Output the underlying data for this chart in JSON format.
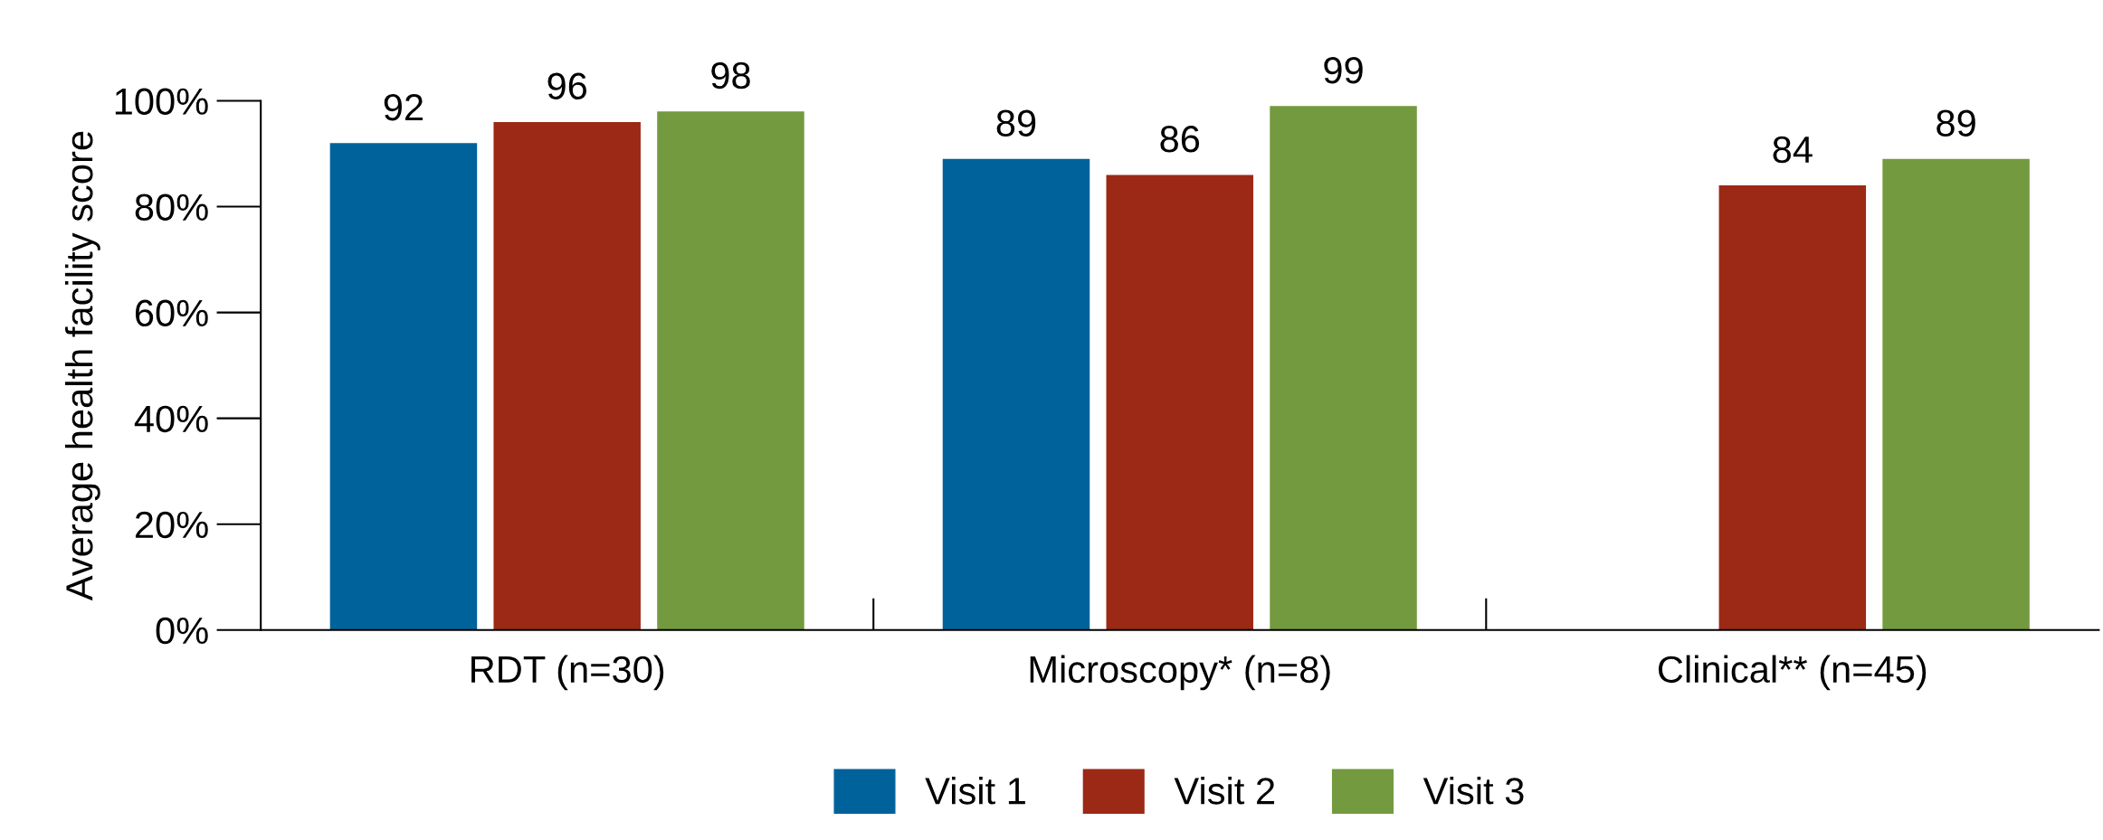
{
  "chart_data": {
    "type": "bar",
    "ylabel": "Average health facility score",
    "categories": [
      "RDT (n=30)",
      "Microscopy* (n=8)",
      "Clinical** (n=45)"
    ],
    "series": [
      {
        "name": "Visit 1",
        "color": "#00629b",
        "values": [
          92,
          89,
          null
        ]
      },
      {
        "name": "Visit 2",
        "color": "#9b2915",
        "values": [
          96,
          86,
          84
        ]
      },
      {
        "name": "Visit 3",
        "color": "#739a3f",
        "values": [
          98,
          99,
          89
        ]
      }
    ],
    "ylim": [
      0,
      100
    ],
    "yticks": [
      {
        "value": 0,
        "label": "0%"
      },
      {
        "value": 20,
        "label": "20%"
      },
      {
        "value": 40,
        "label": "40%"
      },
      {
        "value": 60,
        "label": "60%"
      },
      {
        "value": 80,
        "label": "80%"
      },
      {
        "value": 100,
        "label": "100%"
      }
    ],
    "data_labels": true,
    "grid": false,
    "legend": "bottom"
  }
}
